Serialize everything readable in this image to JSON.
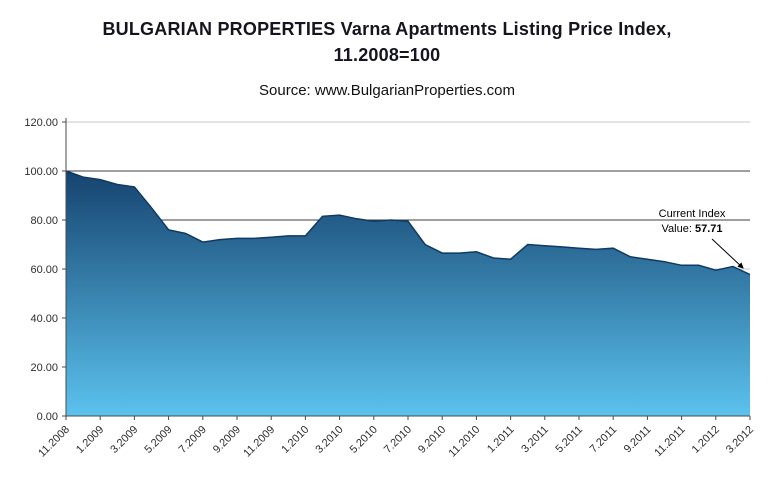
{
  "title": {
    "line1": "BULGARIAN PROPERTIES Varna Apartments Listing Price Index,",
    "line2": "11.2008=100"
  },
  "source": "Source: www.BulgarianProperties.com",
  "annotation": {
    "line1": "Current Index",
    "value_prefix": "Value: ",
    "value": "57.71"
  },
  "chart_data": {
    "type": "area",
    "title": "BULGARIAN PROPERTIES Varna Apartments Listing Price Index, 11.2008=100",
    "subtitle": "Source: www.BulgarianProperties.com",
    "xlabel": "",
    "ylabel": "",
    "ylim": [
      0,
      120
    ],
    "ytick_step": 20,
    "grid": "horizontal",
    "emphasized_gridlines": [
      80,
      100
    ],
    "legend": "none",
    "x": [
      "11.2008",
      "12.2008",
      "1.2009",
      "2.2009",
      "3.2009",
      "4.2009",
      "5.2009",
      "6.2009",
      "7.2009",
      "8.2009",
      "9.2009",
      "10.2009",
      "11.2009",
      "12.2009",
      "1.2010",
      "2.2010",
      "3.2010",
      "4.2010",
      "5.2010",
      "6.2010",
      "7.2010",
      "8.2010",
      "9.2010",
      "10.2010",
      "11.2010",
      "12.2010",
      "1.2011",
      "2.2011",
      "3.2011",
      "4.2011",
      "5.2011",
      "6.2011",
      "7.2011",
      "8.2011",
      "9.2011",
      "10.2011",
      "11.2011",
      "12.2011",
      "1.2012",
      "2.2012",
      "3.2012"
    ],
    "values": [
      100,
      97.5,
      96.5,
      94.5,
      93.5,
      85,
      76,
      74.5,
      71,
      72,
      72.5,
      72.5,
      73,
      73.5,
      73.5,
      81.5,
      82,
      80.5,
      79.5,
      80,
      79.5,
      70,
      66.5,
      66.5,
      67,
      64.5,
      64,
      70,
      69.5,
      69,
      68.5,
      68,
      68.5,
      65,
      64,
      63,
      61.5,
      61.5,
      59.5,
      61,
      57.71
    ],
    "x_tick_every": 2,
    "current_value": 57.71,
    "colors": {
      "area_top": "#16436f",
      "area_bottom": "#5bc2ee",
      "line": "#0f3a63",
      "grid": "#c9c9c9",
      "grid_dark": "#3f3f3f",
      "axis": "#4a4a4a"
    }
  }
}
